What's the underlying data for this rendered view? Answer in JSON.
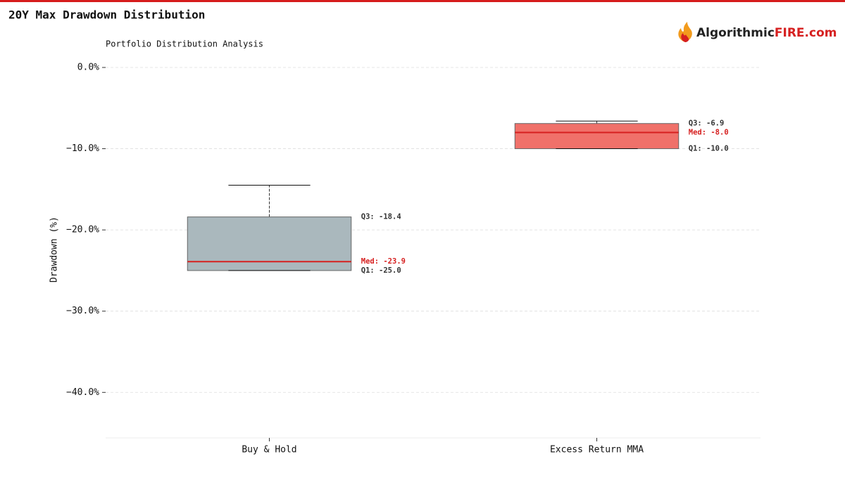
{
  "header": {
    "title": "20Y Max Drawdown Distribution"
  },
  "brand": {
    "name": "Algorithmic",
    "highlight": "FIRE.com"
  },
  "chart_data": {
    "type": "box",
    "title": "Portfolio Distribution Analysis",
    "ylabel": "Drawdown (%)",
    "categories": [
      "Buy & Hold",
      "Excess Return MMA"
    ],
    "ylim": [
      -45.6,
      0.5
    ],
    "yticks": [
      {
        "value": 0,
        "label": "0.0%"
      },
      {
        "value": -10,
        "label": "−10.0%"
      },
      {
        "value": -20,
        "label": "−20.0%"
      },
      {
        "value": -30,
        "label": "−30.0%"
      },
      {
        "value": -40,
        "label": "−40.0%"
      }
    ],
    "grid": true,
    "median_color": "#d62020",
    "boxes": [
      {
        "color": "#aab8bd",
        "whislo": -25.0,
        "q1": -25.0,
        "median": -23.9,
        "q3": -18.4,
        "whishi": -14.5,
        "value_labels": {
          "q3": "Q3: -18.4",
          "median": "Med: -23.9",
          "q1": "Q1: -25.0"
        }
      },
      {
        "color": "#f0716a",
        "whislo": -10.0,
        "q1": -10.0,
        "median": -8.0,
        "q3": -6.9,
        "whishi": -6.6,
        "value_labels": {
          "q3": "Q3: -6.9",
          "median": "Med: -8.0",
          "q1": "Q1: -10.0"
        }
      }
    ]
  }
}
